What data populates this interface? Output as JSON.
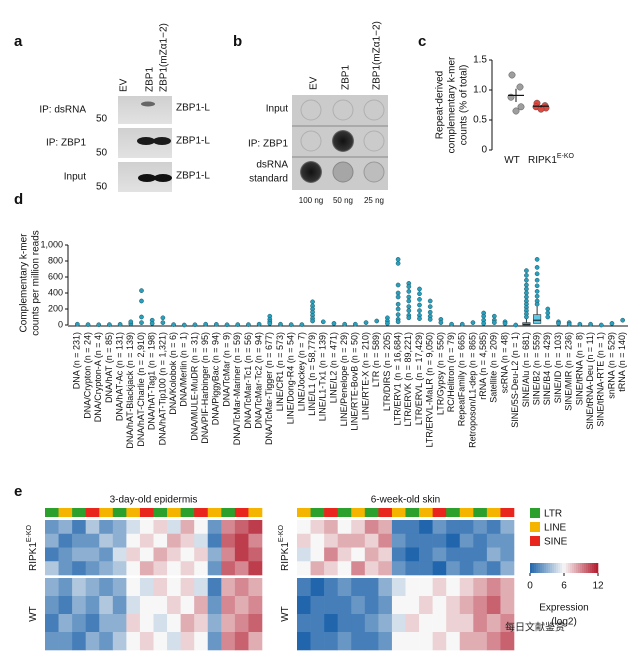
{
  "blots": {
    "a": {
      "label": "a",
      "columns": [
        "EV",
        "ZBP1",
        "ZBP1(mZα1−2)"
      ],
      "rows": [
        "IP: dsRNA",
        "IP: ZBP1",
        "Input"
      ],
      "band": "ZBP1-L",
      "marker": "50"
    },
    "b": {
      "label": "b",
      "columns": [
        "EV",
        "ZBP1",
        "ZBP1(mZα1−2)"
      ],
      "rows": [
        "Input",
        "IP: ZBP1"
      ],
      "standard": [
        "dsRNA",
        "standard"
      ],
      "amounts": [
        "100 ng",
        "50 ng",
        "25 ng"
      ]
    }
  },
  "chart_data": [
    {
      "type": "scatter",
      "label": "c",
      "ylabel": [
        "Repeat-derived",
        "complementary k-mer",
        "counts (% of total)"
      ],
      "categories": [
        "WT",
        "RIPK1"
      ],
      "category_superscripts": [
        null,
        "E-KO"
      ],
      "colors": [
        "#9e9e9e",
        "#e0473e"
      ],
      "points": [
        [
          1.25,
          1.05,
          0.88,
          0.72,
          0.65
        ],
        [
          0.78,
          0.74,
          0.72,
          0.7,
          0.68
        ]
      ],
      "means": [
        0.91,
        0.73
      ],
      "errors": [
        0.11,
        0.02
      ],
      "ylim": [
        0,
        1.5
      ],
      "yticks": [
        0,
        0.5,
        {
          "value": 1,
          "label": "1.0"
        },
        1.5
      ]
    },
    {
      "type": "strip",
      "label": "d",
      "ylabel": [
        "Complementary k-mer",
        "counts per million reads"
      ],
      "color": "#2a9fbc",
      "box_color": "#5ec8e6",
      "ylim": [
        0,
        1000
      ],
      "yticks": [
        0,
        200,
        400,
        600,
        800,
        {
          "value": 1000,
          "label": "1,000"
        }
      ],
      "categories": [
        "DNA (n = 231)",
        "DNA/Crypton (n = 24)",
        "DNA/Crypton-A (n = 4)",
        "DNA/hAT (n = 85)",
        "DNA/hAT-Ac (n = 131)",
        "DNA/hAT-Blackjack (n = 139)",
        "DNA/hAT-Charlie (n = 2,910)",
        "DNA/hAT-Tag1 (n = 198)",
        "DNA/hAT-Tip100 (n = 1,321)",
        "DNA/Kolobok (n = 6)",
        "DNA/Merlin (n = 1)",
        "DNA/MULE-MuDR (n = 31)",
        "DNA/PIF-Harbinger (n = 95)",
        "DNA/PiggyBac (n = 94)",
        "DNA/TcMar (n = 9)",
        "DNA/TcMar-Mariner (n = 59)",
        "DNA/TcMar-Tc1 (n = 56)",
        "DNA/TcMar-Tc2 (n = 94)",
        "DNA/TcMar-Tigger (n = 677)",
        "LINE/CR1 (n = 573)",
        "LINE/Dong-R4 (n = 54)",
        "LINE/Jockey (n = 7)",
        "LINE/L1 (n = 58,779)",
        "LINE/L1-Tx1 (n = 139)",
        "LINE/L2 (n = 471)",
        "LINE/Penelope (n = 29)",
        "LINE/RTE-BovB (n = 50)",
        "LINE/RTE-X (n = 210)",
        "LTR (n = 589)",
        "LTR/DIRS (n = 205)",
        "LTR/ERV1 (n = 16,684)",
        "LTR/ERVK (n = 89,221)",
        "LTR/ERVL (n = 17,429)",
        "LTR/ERVL-MaLR (n = 9,050)",
        "LTR/Gypsy (n = 550)",
        "RC/Helitron (n = 79)",
        "RepeatFamily (n = 665)",
        "Retroposon/L1-dep (n = 865)",
        "rRNA (n = 4,585)",
        "Satellite (n = 209)",
        "scRNA (n = 48)",
        "SINE/5S-Deu-L2 (n = 1)",
        "SINE/Alu (n = 681)",
        "SINE/B2 (n = 559)",
        "SINE/B4 (n = 429)",
        "SINE/ID (n = 103)",
        "SINE/MIR (n = 236)",
        "SINE/tRNA (n = 8)",
        "SINE/tRNA-Deu (n = 11)",
        "SINE/tRNA-RTE (n = 1)",
        "snRNA (n = 529)",
        "tRNA (n = 140)"
      ],
      "points": [
        [
          10
        ],
        [
          5
        ],
        [
          3
        ],
        [
          5
        ],
        [
          8
        ],
        [
          15,
          40
        ],
        [
          430,
          300,
          100,
          30
        ],
        [
          60,
          20
        ],
        [
          90,
          30
        ],
        [
          5
        ],
        [
          0
        ],
        [
          3
        ],
        [
          10
        ],
        [
          8
        ],
        [
          3
        ],
        [
          5
        ],
        [
          5
        ],
        [
          10
        ],
        [
          110,
          70,
          40,
          20
        ],
        [
          10
        ],
        [
          5
        ],
        [
          5
        ],
        [
          290,
          240,
          200,
          160,
          120,
          80,
          50
        ],
        [
          40
        ],
        [
          20
        ],
        [
          10
        ],
        [
          10
        ],
        [
          30
        ],
        [
          50
        ],
        [
          90,
          50,
          20
        ],
        [
          820,
          770,
          500,
          400,
          350,
          260,
          200,
          130,
          70,
          40
        ],
        [
          520,
          480,
          420,
          350,
          300,
          230,
          180,
          120,
          90
        ],
        [
          450,
          390,
          320,
          250,
          180,
          120,
          80
        ],
        [
          300,
          230,
          160,
          110,
          70
        ],
        [
          70,
          30
        ],
        [
          10
        ],
        [
          10
        ],
        [
          30
        ],
        [
          150,
          110,
          60,
          20
        ],
        [
          110,
          60,
          30
        ],
        [
          40,
          20
        ],
        [
          0
        ],
        [
          680,
          620,
          560,
          500,
          450,
          400,
          350,
          300,
          260,
          220,
          180,
          140,
          100
        ],
        [
          820,
          720,
          640,
          560,
          490,
          420,
          360,
          300,
          260
        ],
        [
          200,
          150,
          100
        ],
        [
          40,
          20
        ],
        [
          30,
          10
        ],
        [
          10
        ],
        [
          10
        ],
        [
          0
        ],
        [
          20
        ],
        [
          60
        ]
      ],
      "boxes": [
        null,
        null,
        null,
        null,
        null,
        null,
        null,
        null,
        null,
        null,
        null,
        null,
        null,
        null,
        null,
        null,
        null,
        null,
        null,
        null,
        null,
        null,
        null,
        null,
        null,
        null,
        null,
        null,
        null,
        null,
        null,
        null,
        null,
        null,
        null,
        null,
        null,
        null,
        null,
        null,
        null,
        null,
        {
          "q1": 0,
          "median": 10,
          "q3": 30,
          "whisker_high": 80
        },
        {
          "q1": 20,
          "median": 60,
          "q3": 130,
          "whisker_high": 230
        },
        null,
        null,
        null,
        null,
        null,
        null,
        null,
        null
      ]
    },
    {
      "type": "heatmap",
      "label": "e",
      "row_labels": [
        {
          "text": "RIPK1",
          "sup": "E-KO"
        },
        {
          "text": "WT"
        }
      ],
      "legend": [
        {
          "name": "LTR",
          "color": "#2ca02c"
        },
        {
          "name": "LINE",
          "color": "#f4b400"
        },
        {
          "name": "SINE",
          "color": "#e8261d"
        }
      ],
      "clim": [
        0,
        12
      ],
      "cticks": [
        0,
        6,
        12
      ],
      "colorbar_label": "Expression",
      "colorbar_unit": "(log2)",
      "heatmaps": [
        {
          "title": "3-day-old epidermis",
          "annotation": [
            "LTR",
            "LINE",
            "LTR",
            "SINE",
            "LINE",
            "LTR",
            "LINE",
            "SINE",
            "LTR",
            "LINE",
            "LTR",
            "SINE",
            "LINE",
            "LTR",
            "SINE",
            "LINE"
          ],
          "matrix": [
            [
              2,
              3,
              1,
              4,
              2,
              3,
              5,
              6,
              7,
              5,
              8,
              6,
              2,
              9,
              10,
              11
            ],
            [
              3,
              1,
              2,
              2,
              4,
              3,
              6,
              7,
              6,
              8,
              7,
              5,
              1,
              10,
              11,
              9
            ],
            [
              1,
              2,
              3,
              3,
              2,
              5,
              7,
              6,
              8,
              7,
              6,
              7,
              3,
              9,
              11,
              10
            ],
            [
              4,
              2,
              1,
              2,
              3,
              4,
              6,
              8,
              7,
              6,
              7,
              6,
              2,
              10,
              9,
              11
            ],
            [
              3,
              2,
              4,
              3,
              2,
              3,
              6,
              5,
              7,
              6,
              7,
              5,
              1,
              8,
              9,
              8
            ],
            [
              2,
              1,
              3,
              2,
              4,
              2,
              5,
              6,
              6,
              7,
              6,
              8,
              2,
              9,
              8,
              9
            ],
            [
              1,
              3,
              2,
              1,
              3,
              3,
              7,
              6,
              5,
              6,
              8,
              7,
              3,
              8,
              9,
              10
            ],
            [
              2,
              2,
              1,
              3,
              2,
              4,
              6,
              7,
              6,
              5,
              7,
              6,
              2,
              9,
              10,
              8
            ]
          ]
        },
        {
          "title": "6-week-old skin",
          "annotation": [
            "LINE",
            "LTR",
            "SINE",
            "LTR",
            "LINE",
            "LTR",
            "SINE",
            "LINE",
            "LTR",
            "LINE",
            "SINE",
            "LTR",
            "LINE",
            "LTR",
            "LINE",
            "SINE"
          ],
          "matrix": [
            [
              6,
              7,
              8,
              6,
              7,
              9,
              8,
              1,
              1,
              0,
              2,
              1,
              1,
              2,
              1,
              3
            ],
            [
              7,
              6,
              7,
              8,
              8,
              7,
              9,
              2,
              1,
              1,
              1,
              0,
              2,
              1,
              2,
              2
            ],
            [
              5,
              6,
              9,
              7,
              6,
              8,
              7,
              1,
              0,
              1,
              2,
              1,
              1,
              1,
              3,
              2
            ],
            [
              6,
              8,
              7,
              6,
              9,
              7,
              8,
              2,
              1,
              1,
              0,
              2,
              1,
              2,
              1,
              3
            ],
            [
              1,
              0,
              1,
              2,
              1,
              1,
              3,
              5,
              6,
              6,
              7,
              6,
              7,
              8,
              9,
              8
            ],
            [
              0,
              1,
              1,
              1,
              2,
              1,
              2,
              6,
              6,
              7,
              6,
              7,
              8,
              9,
              10,
              8
            ],
            [
              1,
              1,
              0,
              1,
              1,
              2,
              3,
              5,
              7,
              6,
              6,
              7,
              7,
              9,
              8,
              9
            ],
            [
              0,
              1,
              1,
              2,
              1,
              1,
              2,
              6,
              6,
              6,
              7,
              6,
              8,
              8,
              9,
              10
            ]
          ]
        }
      ]
    }
  ],
  "watermark": "每日文献鉴赏"
}
